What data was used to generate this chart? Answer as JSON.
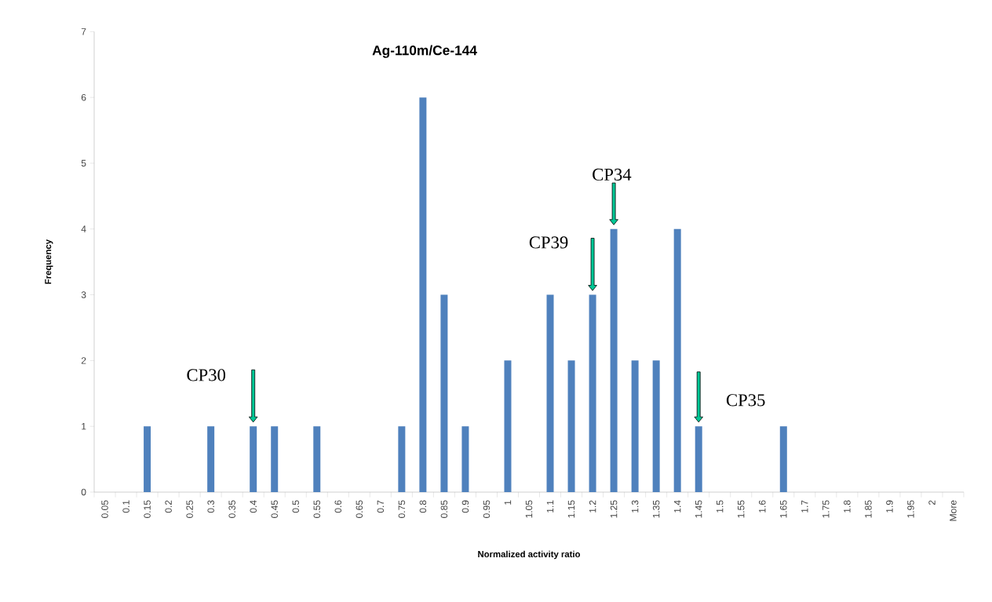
{
  "chart_data": {
    "type": "bar",
    "title": "Ag-110m/Ce-144",
    "xlabel": "Normalized activity ratio",
    "ylabel": "Frequency",
    "categories": [
      "0.05",
      "0.1",
      "0.15",
      "0.2",
      "0.25",
      "0.3",
      "0.35",
      "0.4",
      "0.45",
      "0.5",
      "0.55",
      "0.6",
      "0.65",
      "0.7",
      "0.75",
      "0.8",
      "0.85",
      "0.9",
      "0.95",
      "1",
      "1.05",
      "1.1",
      "1.15",
      "1.2",
      "1.25",
      "1.3",
      "1.35",
      "1.4",
      "1.45",
      "1.5",
      "1.55",
      "1.6",
      "1.65",
      "1.7",
      "1.75",
      "1.8",
      "1.85",
      "1.9",
      "1.95",
      "2",
      "More"
    ],
    "values": [
      0,
      0,
      1,
      0,
      0,
      1,
      0,
      1,
      1,
      0,
      1,
      0,
      0,
      0,
      1,
      6,
      3,
      1,
      0,
      2,
      0,
      3,
      2,
      3,
      4,
      2,
      2,
      4,
      1,
      0,
      0,
      0,
      1,
      0,
      0,
      0,
      0,
      0,
      0,
      0,
      0
    ],
    "color": "#4f81bd",
    "ylim": [
      0,
      7
    ],
    "yticks": [
      0,
      1,
      2,
      3,
      4,
      5,
      6,
      7
    ],
    "grid": false,
    "annotations": [
      {
        "text": "CP30",
        "x": "0.4",
        "y": 1
      },
      {
        "text": "CP39",
        "x": "1.2",
        "y": 3
      },
      {
        "text": "CP34",
        "x": "1.25",
        "y": 4
      },
      {
        "text": "CP35",
        "x": "1.45",
        "y": 1
      }
    ]
  }
}
